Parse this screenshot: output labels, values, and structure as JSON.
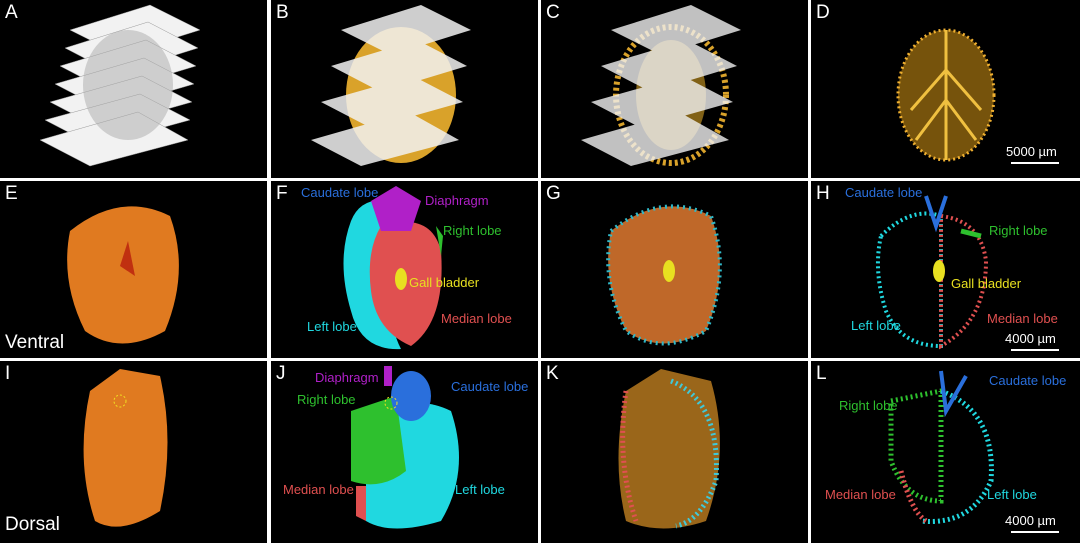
{
  "panels": [
    {
      "letter": "A"
    },
    {
      "letter": "B"
    },
    {
      "letter": "C"
    },
    {
      "letter": "D",
      "scale_bar": "5000 µm"
    },
    {
      "letter": "E",
      "view": "Ventral"
    },
    {
      "letter": "F",
      "labels": [
        {
          "text": "Caudate lobe",
          "color": "#2a6fdc"
        },
        {
          "text": "Diaphragm",
          "color": "#b020c8"
        },
        {
          "text": "Right lobe",
          "color": "#2ec02e"
        },
        {
          "text": "Gall bladder",
          "color": "#e8e020"
        },
        {
          "text": "Left lobe",
          "color": "#20d8e0"
        },
        {
          "text": "Median lobe",
          "color": "#e05050"
        }
      ]
    },
    {
      "letter": "G"
    },
    {
      "letter": "H",
      "scale_bar": "4000 µm",
      "labels": [
        {
          "text": "Caudate lobe",
          "color": "#2a6fdc"
        },
        {
          "text": "Right lobe",
          "color": "#2ec02e"
        },
        {
          "text": "Gall bladder",
          "color": "#e8e020"
        },
        {
          "text": "Left lobe",
          "color": "#20d8e0"
        },
        {
          "text": "Median lobe",
          "color": "#e05050"
        }
      ]
    },
    {
      "letter": "I",
      "view": "Dorsal"
    },
    {
      "letter": "J",
      "labels": [
        {
          "text": "Diaphragm",
          "color": "#b020c8"
        },
        {
          "text": "Caudate lobe",
          "color": "#2a6fdc"
        },
        {
          "text": "Right lobe",
          "color": "#2ec02e"
        },
        {
          "text": "Median lobe",
          "color": "#e05050"
        },
        {
          "text": "Left lobe",
          "color": "#20d8e0"
        }
      ]
    },
    {
      "letter": "K"
    },
    {
      "letter": "L",
      "scale_bar": "4000 µm",
      "labels": [
        {
          "text": "Right lobe",
          "color": "#2ec02e"
        },
        {
          "text": "Caudate lobe",
          "color": "#2a6fdc"
        },
        {
          "text": "Median lobe",
          "color": "#e05050"
        },
        {
          "text": "Left lobe",
          "color": "#20d8e0"
        }
      ]
    }
  ]
}
